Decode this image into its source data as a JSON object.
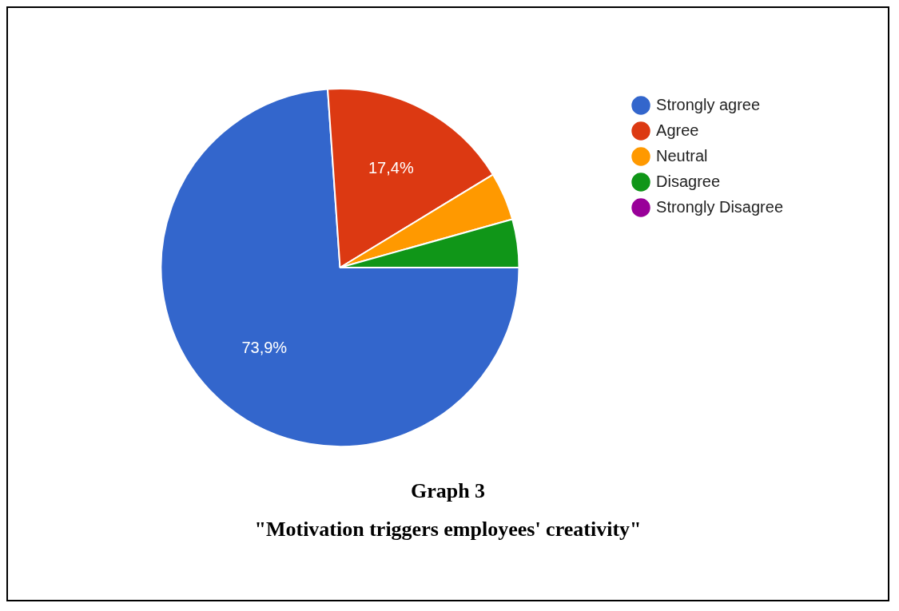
{
  "chart_data": {
    "type": "pie",
    "title": "Graph 3",
    "subtitle": "\"Motivation triggers employees' creativity\"",
    "categories": [
      "Strongly agree",
      "Agree",
      "Neutral",
      "Disagree",
      "Strongly Disagree"
    ],
    "values": [
      73.9,
      17.4,
      4.35,
      4.35,
      0
    ],
    "colors": [
      "#3366cc",
      "#dc3912",
      "#ff9900",
      "#109618",
      "#990099"
    ],
    "value_labels": [
      "73,9%",
      "17,4%",
      null,
      null,
      null
    ],
    "legend": "top right"
  }
}
